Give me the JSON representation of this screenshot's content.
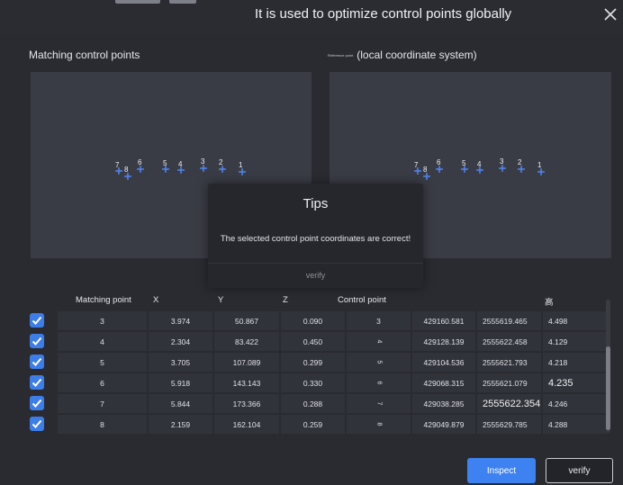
{
  "dialog": {
    "title": "It is used to optimize control points globally"
  },
  "labels": {
    "matching_title": "Matching control points",
    "reference_small": "Reference point",
    "local_title": "(local coordinate system)"
  },
  "points": [
    {
      "label": "7"
    },
    {
      "label": "8"
    },
    {
      "label": "6"
    },
    {
      "label": "5"
    },
    {
      "label": "4"
    },
    {
      "label": "3"
    },
    {
      "label": "2"
    },
    {
      "label": "1"
    }
  ],
  "modal": {
    "title": "Tips",
    "message": "The selected control point coordinates are correct!",
    "verify_label": "verify"
  },
  "table": {
    "headers": {
      "matching": "Matching point",
      "x": "X",
      "y": "Y",
      "z": "Z",
      "control": "Control point",
      "height": "高"
    },
    "rows": [
      {
        "checked": true,
        "match": "3",
        "x": "3.974",
        "y": "50.867",
        "z": "0.090",
        "ctrl": "3",
        "cx": "429160.581",
        "cy": "2555619.465",
        "h": "4.498"
      },
      {
        "checked": true,
        "match": "4",
        "x": "2.304",
        "y": "83.422",
        "z": "0.450",
        "ctrl": "4",
        "cx": "429128.139",
        "cy": "2555622.458",
        "h": "4.129"
      },
      {
        "checked": true,
        "match": "5",
        "x": "3.705",
        "y": "107.089",
        "z": "0.299",
        "ctrl": "5",
        "cx": "429104.536",
        "cy": "2555621.793",
        "h": "4.218"
      },
      {
        "checked": true,
        "match": "6",
        "x": "5.918",
        "y": "143.143",
        "z": "0.330",
        "ctrl": "6",
        "cx": "429068.315",
        "cy": "2555621.079",
        "h": "4.235"
      },
      {
        "checked": true,
        "match": "7",
        "x": "5.844",
        "y": "173.366",
        "z": "0.288",
        "ctrl": "7",
        "cx": "429038.285",
        "cy": "2555622.354",
        "h": "4.246"
      },
      {
        "checked": true,
        "match": "8",
        "x": "2.159",
        "y": "162.104",
        "z": "0.259",
        "ctrl": "8",
        "cx": "429049.879",
        "cy": "2555629.785",
        "h": "4.288"
      }
    ]
  },
  "buttons": {
    "inspect": "Inspect",
    "verify": "verify"
  },
  "colors": {
    "accent": "#3d82f0",
    "marker": "#4f7ee0",
    "panel": "#3a3c45"
  }
}
